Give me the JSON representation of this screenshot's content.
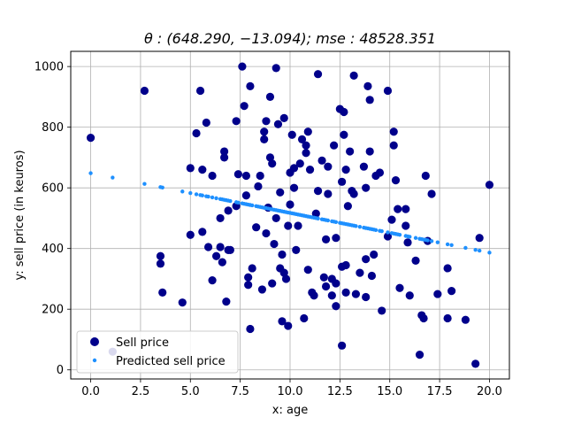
{
  "chart_data": {
    "type": "scatter",
    "title": "θ : (648.290, −13.094); mse : 48528.351",
    "xlabel": "x: age",
    "ylabel": "y: sell price (in keuros)",
    "xlim": [
      -1.0,
      21.0
    ],
    "ylim": [
      -30,
      1050
    ],
    "xticks": [
      0.0,
      2.5,
      5.0,
      7.5,
      10.0,
      12.5,
      15.0,
      17.5,
      20.0
    ],
    "xtick_labels": [
      "0.0",
      "2.5",
      "5.0",
      "7.5",
      "10.0",
      "12.5",
      "15.0",
      "17.5",
      "20.0"
    ],
    "yticks": [
      0,
      200,
      400,
      600,
      800,
      1000
    ],
    "ytick_labels": [
      "0",
      "200",
      "400",
      "600",
      "800",
      "1000"
    ],
    "grid": true,
    "legend_position": "lower-left",
    "series": [
      {
        "name": "Sell price",
        "color": "#00008b",
        "marker": "large-dot",
        "points": [
          [
            0.0,
            765
          ],
          [
            1.1,
            60
          ],
          [
            2.7,
            920
          ],
          [
            3.5,
            350
          ],
          [
            3.5,
            375
          ],
          [
            3.6,
            255
          ],
          [
            4.6,
            222
          ],
          [
            5.0,
            445
          ],
          [
            5.0,
            665
          ],
          [
            5.3,
            780
          ],
          [
            5.5,
            920
          ],
          [
            5.6,
            455
          ],
          [
            5.6,
            660
          ],
          [
            5.8,
            815
          ],
          [
            5.9,
            405
          ],
          [
            6.1,
            640
          ],
          [
            6.1,
            295
          ],
          [
            6.3,
            375
          ],
          [
            6.5,
            500
          ],
          [
            6.5,
            405
          ],
          [
            6.6,
            355
          ],
          [
            6.7,
            720
          ],
          [
            6.7,
            700
          ],
          [
            6.8,
            225
          ],
          [
            6.9,
            395
          ],
          [
            6.9,
            525
          ],
          [
            7.0,
            395
          ],
          [
            7.3,
            540
          ],
          [
            7.3,
            820
          ],
          [
            7.4,
            645
          ],
          [
            7.6,
            1000
          ],
          [
            7.7,
            870
          ],
          [
            7.8,
            640
          ],
          [
            7.8,
            575
          ],
          [
            7.9,
            280
          ],
          [
            7.9,
            305
          ],
          [
            8.0,
            935
          ],
          [
            8.0,
            135
          ],
          [
            8.1,
            335
          ],
          [
            8.3,
            470
          ],
          [
            8.4,
            605
          ],
          [
            8.5,
            640
          ],
          [
            8.6,
            265
          ],
          [
            8.7,
            760
          ],
          [
            8.7,
            785
          ],
          [
            8.8,
            820
          ],
          [
            8.8,
            450
          ],
          [
            8.9,
            535
          ],
          [
            9.0,
            900
          ],
          [
            9.0,
            700
          ],
          [
            9.1,
            680
          ],
          [
            9.1,
            285
          ],
          [
            9.2,
            415
          ],
          [
            9.3,
            995
          ],
          [
            9.3,
            500
          ],
          [
            9.4,
            810
          ],
          [
            9.5,
            335
          ],
          [
            9.5,
            585
          ],
          [
            9.6,
            160
          ],
          [
            9.6,
            380
          ],
          [
            9.7,
            320
          ],
          [
            9.7,
            830
          ],
          [
            9.8,
            300
          ],
          [
            9.9,
            475
          ],
          [
            9.9,
            145
          ],
          [
            10.0,
            650
          ],
          [
            10.0,
            545
          ],
          [
            10.1,
            775
          ],
          [
            10.2,
            600
          ],
          [
            10.2,
            665
          ],
          [
            10.3,
            395
          ],
          [
            10.4,
            475
          ],
          [
            10.5,
            680
          ],
          [
            10.6,
            760
          ],
          [
            10.7,
            170
          ],
          [
            10.8,
            740
          ],
          [
            10.8,
            715
          ],
          [
            10.9,
            785
          ],
          [
            10.9,
            330
          ],
          [
            11.0,
            660
          ],
          [
            11.1,
            255
          ],
          [
            11.2,
            245
          ],
          [
            11.3,
            515
          ],
          [
            11.4,
            975
          ],
          [
            11.4,
            590
          ],
          [
            11.6,
            690
          ],
          [
            11.7,
            305
          ],
          [
            11.8,
            275
          ],
          [
            11.8,
            430
          ],
          [
            11.9,
            670
          ],
          [
            11.9,
            580
          ],
          [
            12.1,
            245
          ],
          [
            12.1,
            300
          ],
          [
            12.2,
            740
          ],
          [
            12.3,
            435
          ],
          [
            12.3,
            210
          ],
          [
            12.3,
            285
          ],
          [
            12.5,
            860
          ],
          [
            12.6,
            80
          ],
          [
            12.6,
            340
          ],
          [
            12.6,
            620
          ],
          [
            12.7,
            850
          ],
          [
            12.7,
            775
          ],
          [
            12.8,
            660
          ],
          [
            12.8,
            345
          ],
          [
            12.8,
            255
          ],
          [
            12.9,
            540
          ],
          [
            13.0,
            720
          ],
          [
            13.1,
            590
          ],
          [
            13.2,
            580
          ],
          [
            13.2,
            970
          ],
          [
            13.3,
            250
          ],
          [
            13.5,
            320
          ],
          [
            13.7,
            670
          ],
          [
            13.8,
            240
          ],
          [
            13.8,
            365
          ],
          [
            13.8,
            600
          ],
          [
            13.9,
            935
          ],
          [
            14.0,
            720
          ],
          [
            14.0,
            890
          ],
          [
            14.1,
            310
          ],
          [
            14.2,
            380
          ],
          [
            14.3,
            640
          ],
          [
            14.5,
            650
          ],
          [
            14.6,
            195
          ],
          [
            14.9,
            920
          ],
          [
            14.9,
            440
          ],
          [
            15.1,
            495
          ],
          [
            15.2,
            740
          ],
          [
            15.2,
            785
          ],
          [
            15.3,
            625
          ],
          [
            15.4,
            530
          ],
          [
            15.5,
            270
          ],
          [
            15.8,
            530
          ],
          [
            15.8,
            475
          ],
          [
            15.9,
            420
          ],
          [
            16.0,
            245
          ],
          [
            16.3,
            360
          ],
          [
            16.5,
            50
          ],
          [
            16.6,
            180
          ],
          [
            16.7,
            170
          ],
          [
            16.8,
            640
          ],
          [
            16.9,
            425
          ],
          [
            17.1,
            580
          ],
          [
            17.4,
            250
          ],
          [
            17.9,
            335
          ],
          [
            17.9,
            170
          ],
          [
            18.1,
            260
          ],
          [
            18.8,
            165
          ],
          [
            19.3,
            20
          ],
          [
            19.5,
            435
          ],
          [
            20.0,
            610
          ]
        ]
      },
      {
        "name": "Predicted sell price",
        "color": "#1e90ff",
        "marker": "small-dot",
        "intercept": 648.29,
        "slope": -13.094,
        "x": [
          0.0,
          1.1,
          2.7,
          3.5,
          3.6,
          4.6,
          5.0,
          5.3,
          5.5,
          5.6,
          5.8,
          5.9,
          6.1,
          6.3,
          6.5,
          6.6,
          6.7,
          6.8,
          6.9,
          7.0,
          7.3,
          7.4,
          7.6,
          7.7,
          7.8,
          7.9,
          8.0,
          8.1,
          8.3,
          8.4,
          8.5,
          8.6,
          8.7,
          8.8,
          8.9,
          9.0,
          9.1,
          9.2,
          9.3,
          9.4,
          9.5,
          9.6,
          9.7,
          9.8,
          9.9,
          10.0,
          10.1,
          10.2,
          10.3,
          10.4,
          10.5,
          10.6,
          10.7,
          10.8,
          10.9,
          11.0,
          11.1,
          11.2,
          11.3,
          11.4,
          11.6,
          11.7,
          11.8,
          11.9,
          12.1,
          12.2,
          12.3,
          12.5,
          12.6,
          12.7,
          12.8,
          12.9,
          13.0,
          13.1,
          13.2,
          13.3,
          13.5,
          13.7,
          13.8,
          13.9,
          14.0,
          14.1,
          14.2,
          14.3,
          14.5,
          14.6,
          14.9,
          15.1,
          15.2,
          15.3,
          15.4,
          15.5,
          15.8,
          15.9,
          16.0,
          16.3,
          16.5,
          16.6,
          16.7,
          16.8,
          16.9,
          17.1,
          17.4,
          17.9,
          18.1,
          18.8,
          19.3,
          19.5,
          20.0
        ]
      }
    ]
  }
}
